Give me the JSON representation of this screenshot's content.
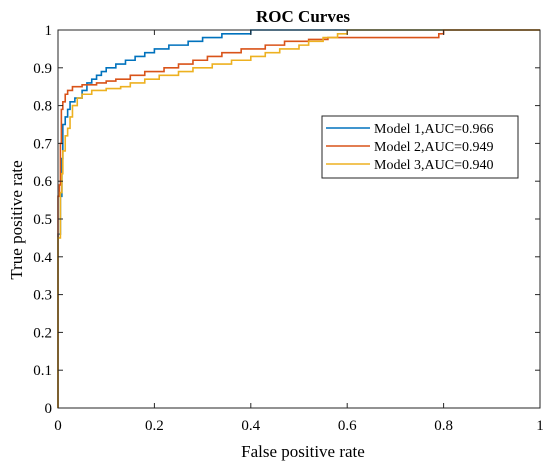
{
  "chart_data": {
    "type": "line",
    "title": "ROC Curves",
    "xlabel": "False positive rate",
    "ylabel": "True positive rate",
    "xlim": [
      0,
      1
    ],
    "ylim": [
      0,
      1
    ],
    "xticks": [
      "0",
      "0.2",
      "0.4",
      "0.6",
      "0.8",
      "1"
    ],
    "yticks": [
      "0",
      "0.1",
      "0.2",
      "0.3",
      "0.4",
      "0.5",
      "0.6",
      "0.7",
      "0.8",
      "0.9",
      "1"
    ],
    "grid": false,
    "legend_position": "right",
    "series": [
      {
        "name": "Model 1,AUC=0.966",
        "color": "#0072BD",
        "points": [
          [
            0,
            0
          ],
          [
            0,
            0.46
          ],
          [
            0.005,
            0.46
          ],
          [
            0.005,
            0.56
          ],
          [
            0.008,
            0.56
          ],
          [
            0.008,
            0.66
          ],
          [
            0.01,
            0.66
          ],
          [
            0.01,
            0.75
          ],
          [
            0.015,
            0.75
          ],
          [
            0.015,
            0.77
          ],
          [
            0.02,
            0.77
          ],
          [
            0.02,
            0.79
          ],
          [
            0.025,
            0.79
          ],
          [
            0.025,
            0.81
          ],
          [
            0.035,
            0.81
          ],
          [
            0.035,
            0.82
          ],
          [
            0.05,
            0.82
          ],
          [
            0.05,
            0.84
          ],
          [
            0.06,
            0.84
          ],
          [
            0.06,
            0.86
          ],
          [
            0.07,
            0.86
          ],
          [
            0.07,
            0.87
          ],
          [
            0.08,
            0.87
          ],
          [
            0.08,
            0.88
          ],
          [
            0.09,
            0.88
          ],
          [
            0.09,
            0.89
          ],
          [
            0.1,
            0.89
          ],
          [
            0.1,
            0.9
          ],
          [
            0.12,
            0.9
          ],
          [
            0.12,
            0.91
          ],
          [
            0.14,
            0.91
          ],
          [
            0.14,
            0.92
          ],
          [
            0.16,
            0.92
          ],
          [
            0.16,
            0.93
          ],
          [
            0.18,
            0.93
          ],
          [
            0.18,
            0.94
          ],
          [
            0.2,
            0.94
          ],
          [
            0.2,
            0.95
          ],
          [
            0.23,
            0.95
          ],
          [
            0.23,
            0.96
          ],
          [
            0.27,
            0.96
          ],
          [
            0.27,
            0.97
          ],
          [
            0.3,
            0.97
          ],
          [
            0.3,
            0.98
          ],
          [
            0.34,
            0.98
          ],
          [
            0.34,
            0.99
          ],
          [
            0.4,
            0.99
          ],
          [
            0.4,
            1.0
          ],
          [
            1,
            1.0
          ]
        ]
      },
      {
        "name": "Model 2,AUC=0.949",
        "color": "#D95319",
        "points": [
          [
            0,
            0
          ],
          [
            0,
            0.56
          ],
          [
            0.003,
            0.56
          ],
          [
            0.003,
            0.59
          ],
          [
            0.005,
            0.59
          ],
          [
            0.005,
            0.7
          ],
          [
            0.007,
            0.7
          ],
          [
            0.007,
            0.79
          ],
          [
            0.01,
            0.79
          ],
          [
            0.01,
            0.81
          ],
          [
            0.015,
            0.81
          ],
          [
            0.015,
            0.83
          ],
          [
            0.02,
            0.83
          ],
          [
            0.02,
            0.84
          ],
          [
            0.03,
            0.84
          ],
          [
            0.03,
            0.85
          ],
          [
            0.05,
            0.85
          ],
          [
            0.05,
            0.855
          ],
          [
            0.08,
            0.855
          ],
          [
            0.08,
            0.86
          ],
          [
            0.1,
            0.86
          ],
          [
            0.1,
            0.865
          ],
          [
            0.12,
            0.865
          ],
          [
            0.12,
            0.87
          ],
          [
            0.15,
            0.87
          ],
          [
            0.15,
            0.88
          ],
          [
            0.18,
            0.88
          ],
          [
            0.18,
            0.89
          ],
          [
            0.22,
            0.89
          ],
          [
            0.22,
            0.9
          ],
          [
            0.25,
            0.9
          ],
          [
            0.25,
            0.91
          ],
          [
            0.28,
            0.91
          ],
          [
            0.28,
            0.92
          ],
          [
            0.31,
            0.92
          ],
          [
            0.31,
            0.93
          ],
          [
            0.34,
            0.93
          ],
          [
            0.34,
            0.94
          ],
          [
            0.38,
            0.94
          ],
          [
            0.38,
            0.95
          ],
          [
            0.43,
            0.95
          ],
          [
            0.43,
            0.96
          ],
          [
            0.47,
            0.96
          ],
          [
            0.47,
            0.97
          ],
          [
            0.52,
            0.97
          ],
          [
            0.52,
            0.975
          ],
          [
            0.56,
            0.975
          ],
          [
            0.56,
            0.98
          ],
          [
            0.79,
            0.98
          ],
          [
            0.79,
            0.99
          ],
          [
            0.8,
            0.99
          ],
          [
            0.8,
            1.0
          ],
          [
            1,
            1.0
          ]
        ]
      },
      {
        "name": "Model 3,AUC=0.940",
        "color": "#EDB120",
        "points": [
          [
            0,
            0
          ],
          [
            0,
            0.45
          ],
          [
            0.005,
            0.45
          ],
          [
            0.005,
            0.57
          ],
          [
            0.008,
            0.57
          ],
          [
            0.008,
            0.62
          ],
          [
            0.01,
            0.62
          ],
          [
            0.01,
            0.68
          ],
          [
            0.015,
            0.68
          ],
          [
            0.015,
            0.72
          ],
          [
            0.02,
            0.72
          ],
          [
            0.02,
            0.74
          ],
          [
            0.025,
            0.74
          ],
          [
            0.025,
            0.77
          ],
          [
            0.03,
            0.77
          ],
          [
            0.03,
            0.8
          ],
          [
            0.04,
            0.8
          ],
          [
            0.04,
            0.82
          ],
          [
            0.05,
            0.82
          ],
          [
            0.05,
            0.83
          ],
          [
            0.07,
            0.83
          ],
          [
            0.07,
            0.84
          ],
          [
            0.1,
            0.84
          ],
          [
            0.1,
            0.845
          ],
          [
            0.13,
            0.845
          ],
          [
            0.13,
            0.85
          ],
          [
            0.15,
            0.85
          ],
          [
            0.15,
            0.86
          ],
          [
            0.18,
            0.86
          ],
          [
            0.18,
            0.87
          ],
          [
            0.21,
            0.87
          ],
          [
            0.21,
            0.88
          ],
          [
            0.25,
            0.88
          ],
          [
            0.25,
            0.89
          ],
          [
            0.28,
            0.89
          ],
          [
            0.28,
            0.9
          ],
          [
            0.32,
            0.9
          ],
          [
            0.32,
            0.91
          ],
          [
            0.36,
            0.91
          ],
          [
            0.36,
            0.92
          ],
          [
            0.4,
            0.92
          ],
          [
            0.4,
            0.93
          ],
          [
            0.43,
            0.93
          ],
          [
            0.43,
            0.94
          ],
          [
            0.46,
            0.94
          ],
          [
            0.46,
            0.95
          ],
          [
            0.5,
            0.95
          ],
          [
            0.5,
            0.96
          ],
          [
            0.52,
            0.96
          ],
          [
            0.52,
            0.97
          ],
          [
            0.55,
            0.97
          ],
          [
            0.55,
            0.98
          ],
          [
            0.58,
            0.98
          ],
          [
            0.58,
            0.99
          ],
          [
            0.6,
            0.99
          ],
          [
            0.6,
            1.0
          ],
          [
            1,
            1.0
          ]
        ]
      }
    ]
  }
}
